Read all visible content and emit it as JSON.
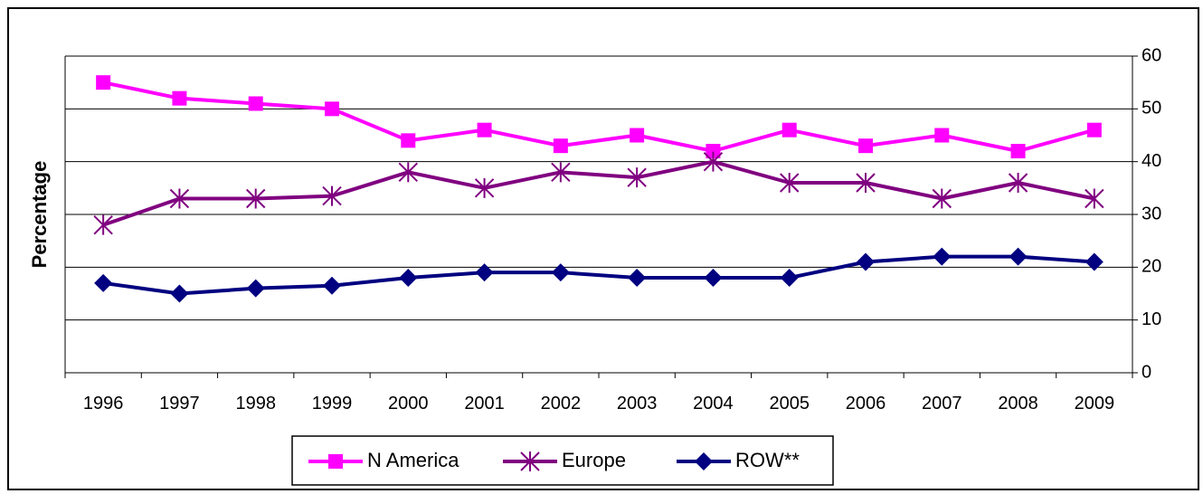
{
  "chart_data": {
    "type": "line",
    "title": "",
    "xlabel": "",
    "ylabel": "Percentage",
    "categories": [
      "1996",
      "1997",
      "1998",
      "1999",
      "2000",
      "2001",
      "2002",
      "2003",
      "2004",
      "2005",
      "2006",
      "2007",
      "2008",
      "2009"
    ],
    "ylim": [
      0,
      60
    ],
    "yticks": [
      "0",
      "10",
      "20",
      "30",
      "40",
      "50",
      "60"
    ],
    "y_axis_side": "right",
    "grid": true,
    "legend_position": "bottom",
    "series": [
      {
        "name": "N America",
        "color": "#ff00ff",
        "marker": "square",
        "values": [
          55,
          52,
          51,
          50,
          44,
          46,
          43,
          45,
          42,
          46,
          43,
          45,
          42,
          46
        ]
      },
      {
        "name": "Europe",
        "color": "#800080",
        "marker": "asterisk",
        "values": [
          28,
          33,
          33,
          33.5,
          38,
          35,
          38,
          37,
          40,
          36,
          36,
          33,
          36,
          33
        ]
      },
      {
        "name": "ROW**",
        "color": "#000080",
        "marker": "diamond",
        "values": [
          17,
          15,
          16,
          16.5,
          18,
          19,
          19,
          18,
          18,
          18,
          21,
          22,
          22,
          21
        ]
      }
    ]
  }
}
